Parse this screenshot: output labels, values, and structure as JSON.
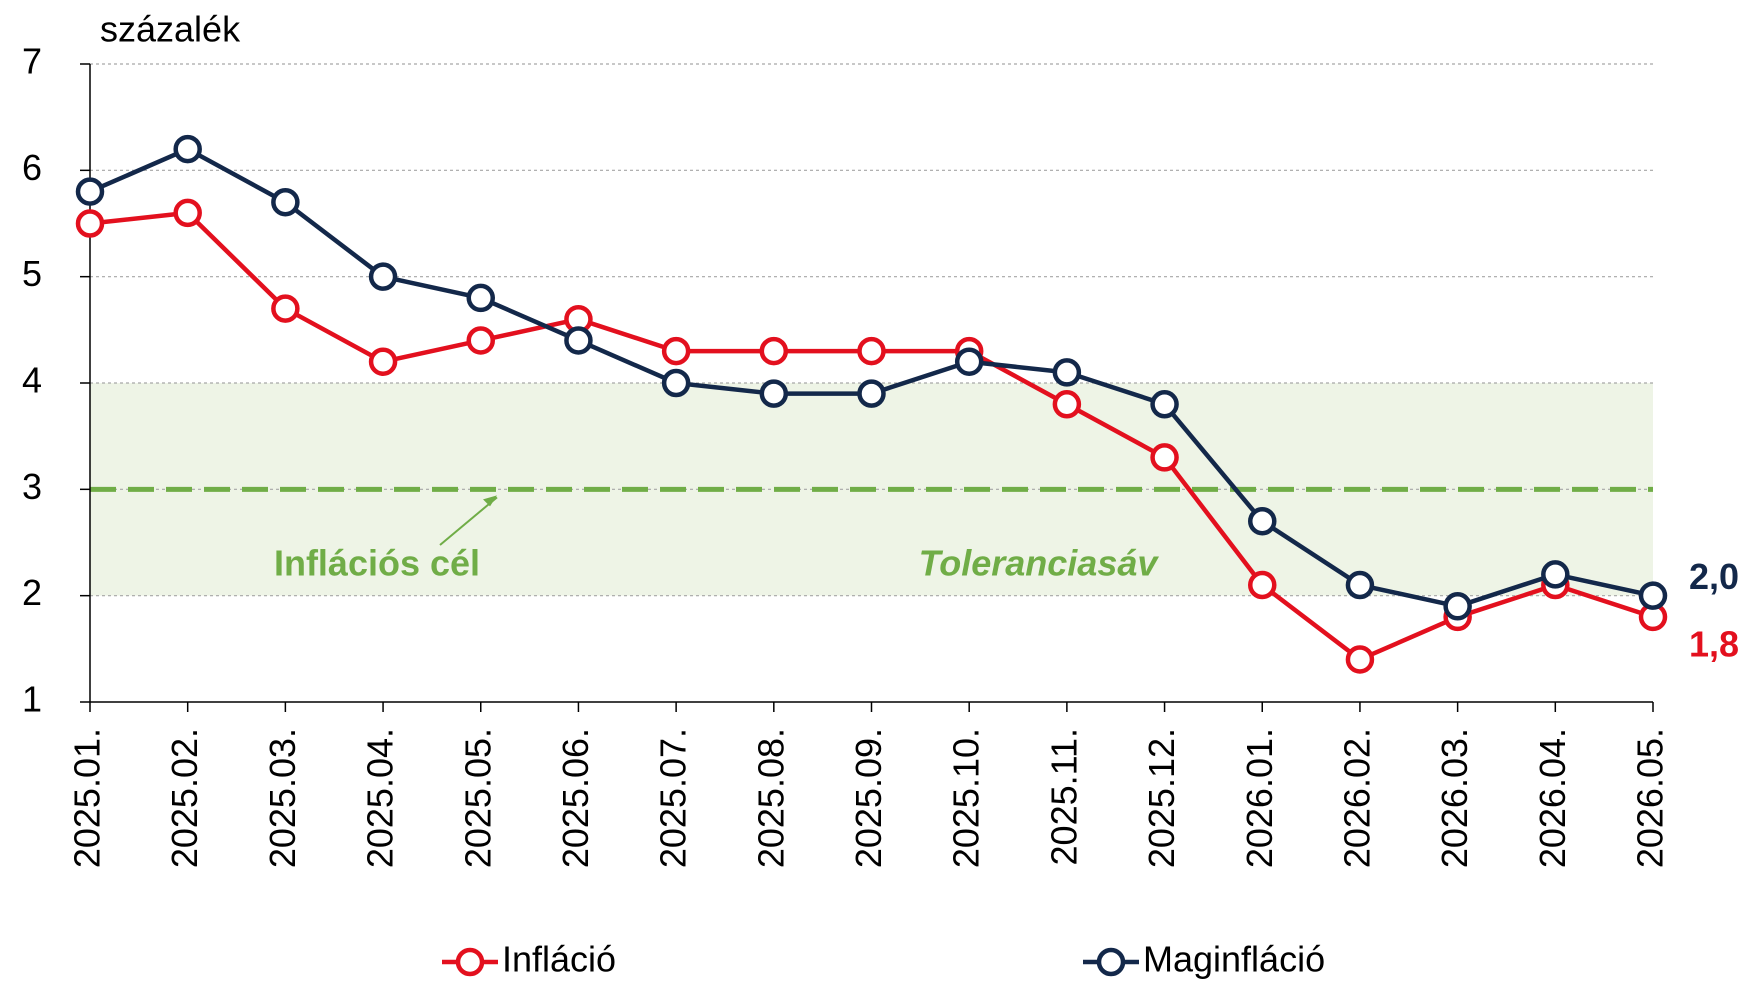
{
  "chart_data": {
    "type": "line",
    "y_axis_label": "százalék",
    "categories": [
      "2025.01.",
      "2025.02.",
      "2025.03.",
      "2025.04.",
      "2025.05.",
      "2025.06.",
      "2025.07.",
      "2025.08.",
      "2025.09.",
      "2025.10.",
      "2025.11.",
      "2025.12.",
      "2026.01.",
      "2026.02.",
      "2026.03.",
      "2026.04.",
      "2026.05."
    ],
    "series": [
      {
        "name": "Infláció",
        "color": "#e3101e",
        "values": [
          5.5,
          5.6,
          4.7,
          4.2,
          4.4,
          4.6,
          4.3,
          4.3,
          4.3,
          4.3,
          3.8,
          3.3,
          2.1,
          1.4,
          1.8,
          2.1,
          1.8
        ],
        "value_labels": [
          null,
          null,
          null,
          null,
          null,
          null,
          null,
          null,
          null,
          null,
          null,
          null,
          null,
          null,
          null,
          null,
          "1,8"
        ]
      },
      {
        "name": "Maginfláció",
        "color": "#13284a",
        "values": [
          5.8,
          6.2,
          5.7,
          5.0,
          4.8,
          4.4,
          4.0,
          3.9,
          3.9,
          4.2,
          4.1,
          3.8,
          2.7,
          2.1,
          1.9,
          2.2,
          2.0
        ],
        "value_labels": [
          null,
          null,
          null,
          null,
          null,
          null,
          null,
          null,
          null,
          null,
          null,
          null,
          null,
          null,
          null,
          null,
          "2,0"
        ]
      }
    ],
    "target": {
      "value": 3,
      "label": "Inflációs cél",
      "color": "#70ad47"
    },
    "tolerance_band": {
      "range": [
        2,
        4
      ],
      "label": "Toleranciasáv",
      "color": "#eef4e6"
    },
    "ylim": [
      1,
      7
    ],
    "yticks": [
      1,
      2,
      3,
      4,
      5,
      6,
      7
    ],
    "grid": true
  }
}
